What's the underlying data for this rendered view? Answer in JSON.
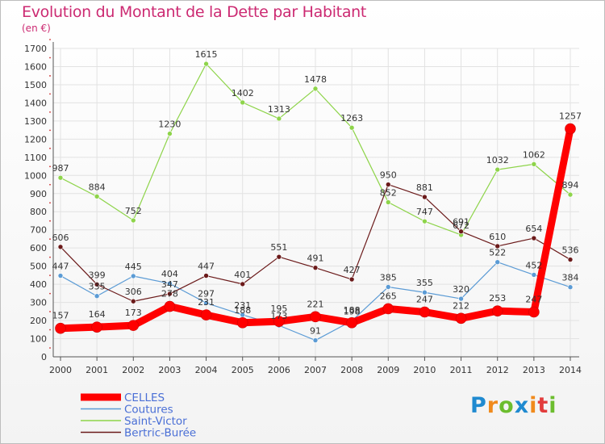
{
  "chart_data": {
    "type": "line",
    "title": "Evolution du Montant de la Dette par Habitant",
    "unit": "(en €)",
    "x": [
      "2000",
      "2001",
      "2002",
      "2003",
      "2004",
      "2005",
      "2006",
      "2007",
      "2008",
      "2009",
      "2010",
      "2011",
      "2012",
      "2013",
      "2014"
    ],
    "ylim": [
      0,
      1700
    ],
    "yticks": [
      0,
      100,
      200,
      300,
      400,
      500,
      600,
      700,
      800,
      900,
      1000,
      1100,
      1200,
      1300,
      1400,
      1500,
      1600,
      1700
    ],
    "series": [
      {
        "name": "CELLES",
        "color": "#ff0000",
        "width": 9,
        "marker": 6.5,
        "values": [
          157,
          164,
          173,
          278,
          231,
          188,
          195,
          221,
          188,
          265,
          247,
          212,
          253,
          247,
          1257
        ]
      },
      {
        "name": "Coutures",
        "color": "#5b9bd5",
        "width": 1.2,
        "marker": 3,
        "values": [
          447,
          335,
          445,
          404,
          297,
          231,
          173,
          91,
          198,
          385,
          355,
          320,
          522,
          452,
          384
        ]
      },
      {
        "name": "Saint-Victor",
        "color": "#8ed44a",
        "width": 1.2,
        "marker": 3,
        "values": [
          987,
          884,
          752,
          1230,
          1615,
          1402,
          1313,
          1478,
          1263,
          852,
          747,
          672,
          1032,
          1062,
          894
        ]
      },
      {
        "name": "Bertric-Burée",
        "color": "#6b1a1a",
        "width": 1.2,
        "marker": 3,
        "values": [
          606,
          399,
          306,
          347,
          447,
          401,
          551,
          491,
          427,
          950,
          881,
          691,
          610,
          654,
          536
        ]
      }
    ]
  },
  "logo": {
    "letters": [
      "P",
      "r",
      "o",
      "x",
      "i",
      "t",
      "i"
    ],
    "colors": [
      "#1f8ad0",
      "#f08a1c",
      "#6cbd2e",
      "#1f8ad0",
      "#f08a1c",
      "#e23c3c",
      "#6cbd2e"
    ]
  }
}
